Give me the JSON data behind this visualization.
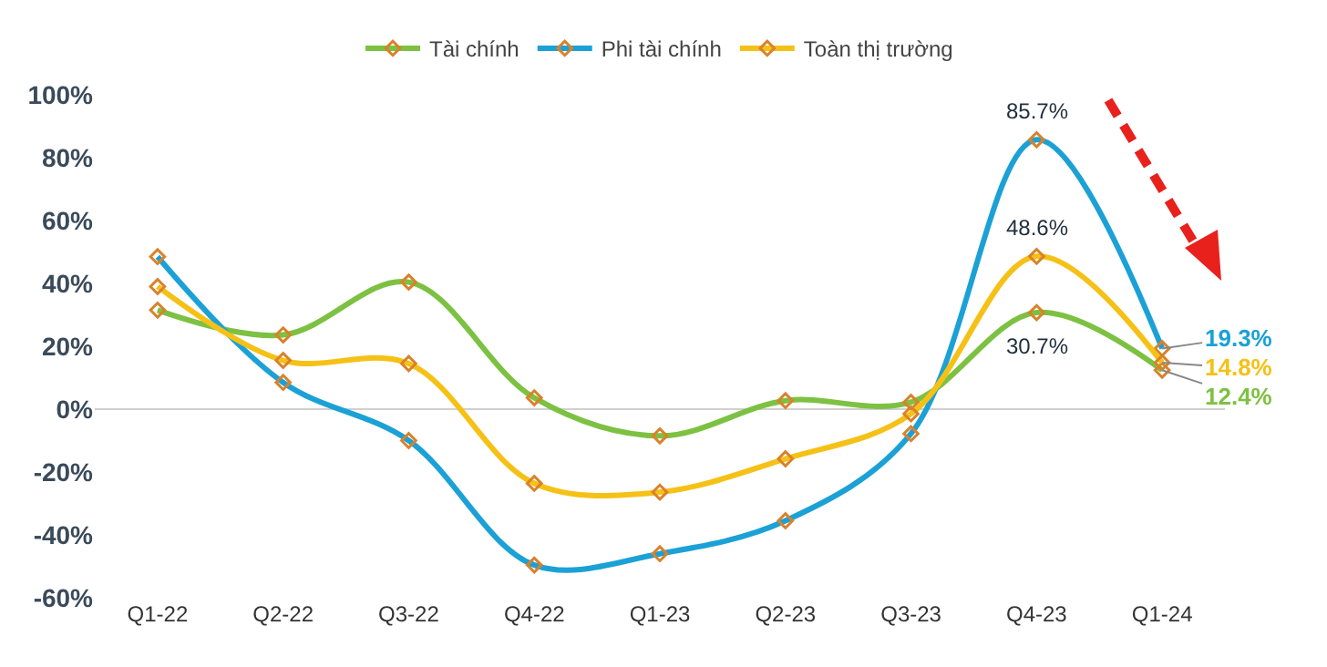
{
  "chart_data": {
    "type": "line",
    "categories": [
      "Q1-22",
      "Q2-22",
      "Q3-22",
      "Q4-22",
      "Q1-23",
      "Q2-23",
      "Q3-23",
      "Q4-23",
      "Q1-24"
    ],
    "series": [
      {
        "name": "Tài chính",
        "color": "#7dc142",
        "values": [
          31.5,
          23.6,
          40.4,
          3.6,
          -8.5,
          2.7,
          2.2,
          30.7,
          12.4
        ],
        "value_labels": [
          null,
          null,
          null,
          null,
          null,
          null,
          null,
          "30.7%",
          "12.4%"
        ]
      },
      {
        "name": "Phi tài chính",
        "color": "#1ba1d6",
        "values": [
          48.5,
          8.5,
          -10,
          -49.6,
          -46,
          -35.5,
          -7.8,
          85.7,
          19.3
        ],
        "value_labels": [
          null,
          null,
          null,
          null,
          null,
          null,
          null,
          "85.7%",
          "19.3%"
        ]
      },
      {
        "name": "Toàn thị trường",
        "color": "#f5c116",
        "values": [
          39,
          15.5,
          14.5,
          -23.6,
          -26.4,
          -15.8,
          -1.5,
          48.6,
          14.8
        ],
        "value_labels": [
          null,
          null,
          null,
          null,
          null,
          null,
          null,
          "48.6%",
          "14.8%"
        ]
      }
    ],
    "ylim": [
      -60,
      100
    ],
    "yticks": [
      {
        "value": -60,
        "label": "-60%"
      },
      {
        "value": -40,
        "label": "-40%"
      },
      {
        "value": -20,
        "label": "-20%"
      },
      {
        "value": 0,
        "label": "0%"
      },
      {
        "value": 20,
        "label": "20%"
      },
      {
        "value": 40,
        "label": "40%"
      },
      {
        "value": 60,
        "label": "60%"
      },
      {
        "value": 80,
        "label": "80%"
      },
      {
        "value": 100,
        "label": "100%"
      }
    ],
    "ref_lines": [
      {
        "axis": "y",
        "value": 0,
        "color": "#d0d0d0"
      }
    ],
    "grid": false,
    "legend": "top",
    "marker": "diamond",
    "line_style": "solid"
  }
}
